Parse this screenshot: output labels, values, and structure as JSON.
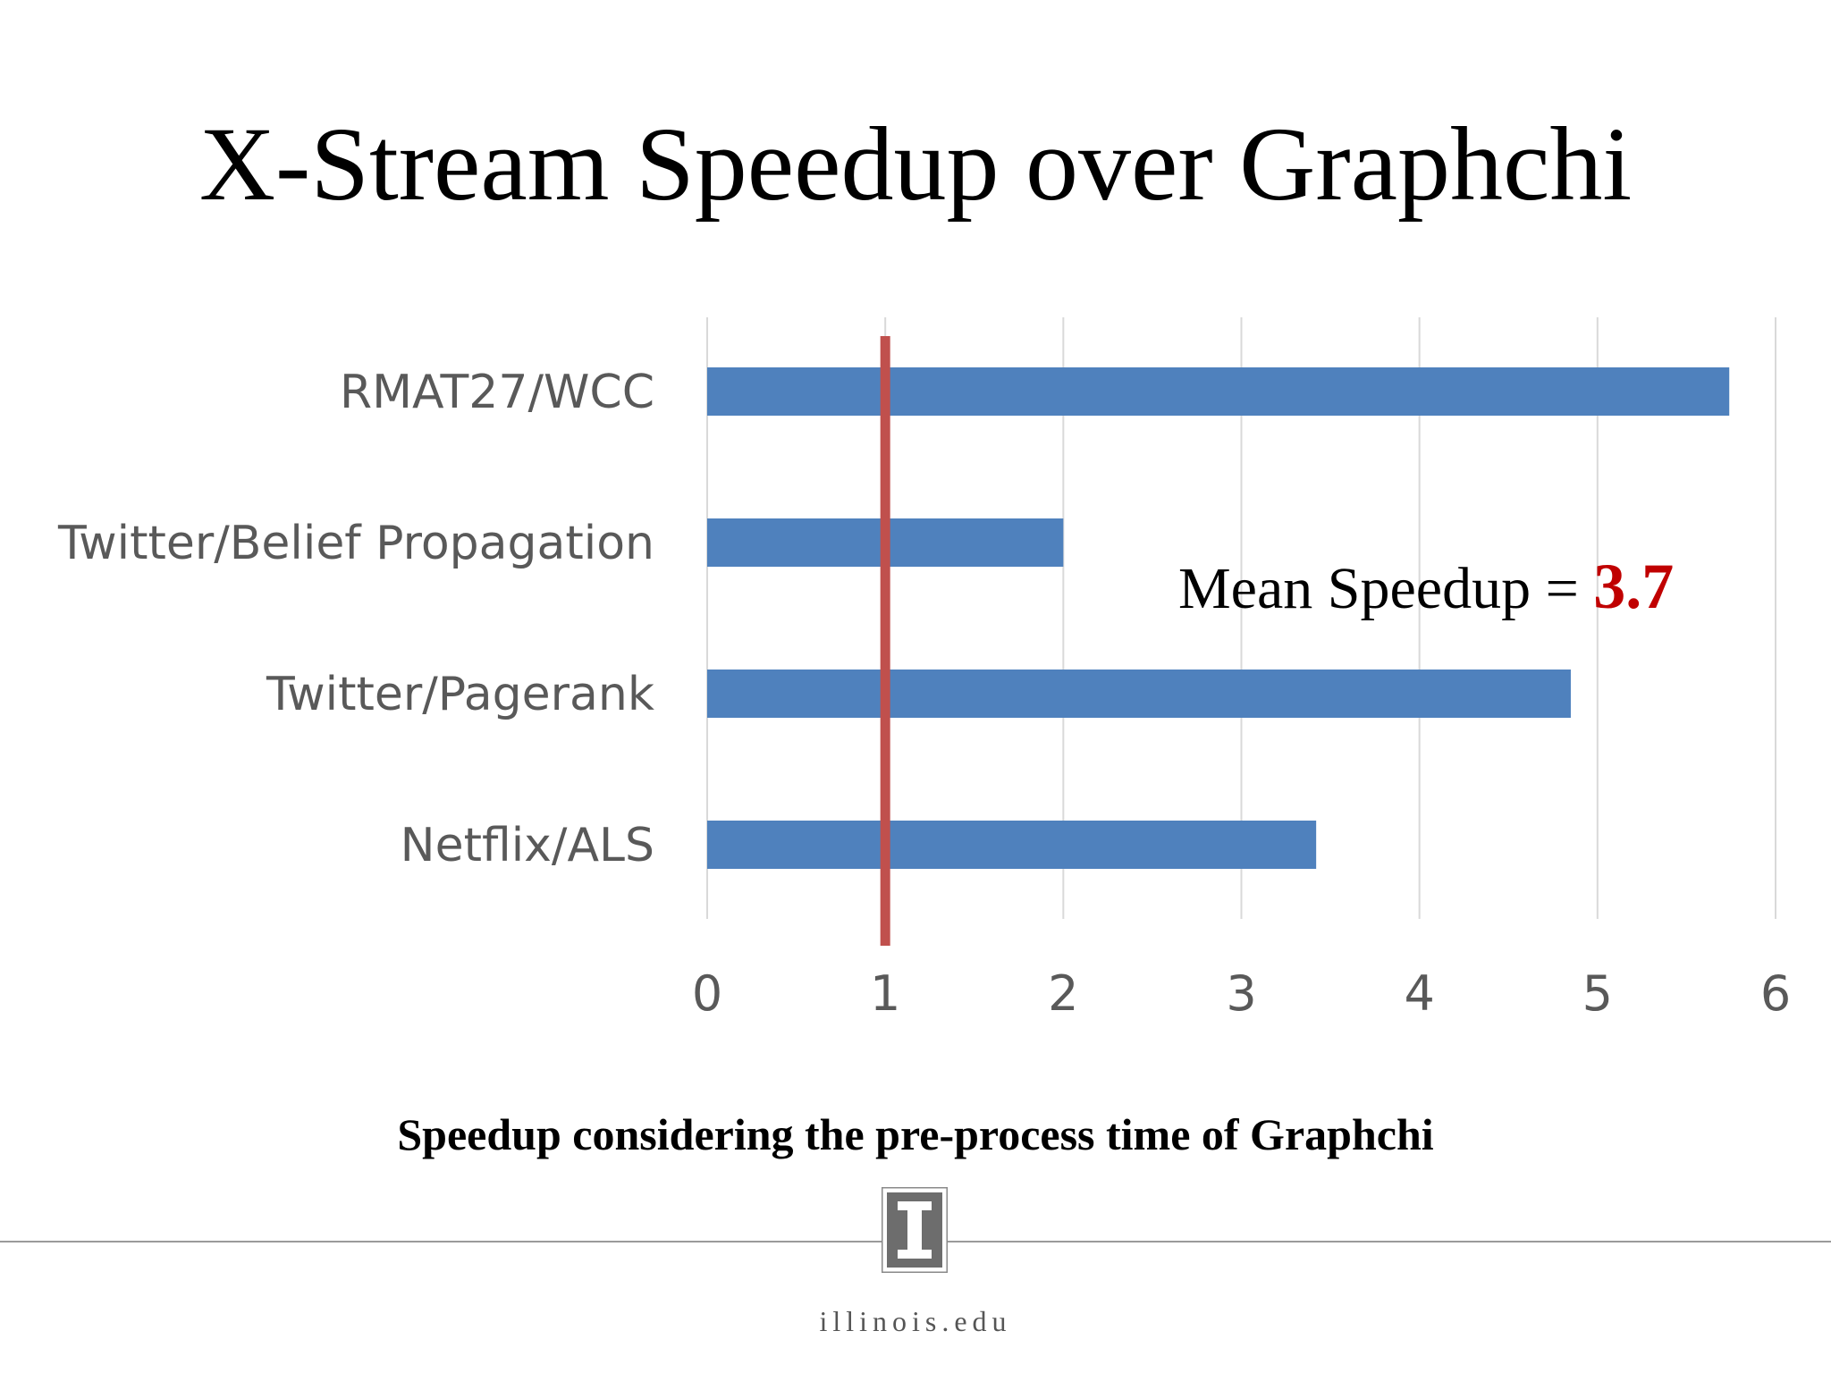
{
  "slide": {
    "title": "X-Stream Speedup over Graphchi",
    "caption": "Speedup considering the pre-process time of Graphchi",
    "annotation_text": "Mean Speedup = ",
    "annotation_value": "3.7",
    "footer_site": "illinois.edu"
  },
  "colors": {
    "bar": "#4f81bd",
    "reference_line": "#c0504d",
    "annotation_value": "#c00000",
    "gridline": "#d9d9d9",
    "label": "#595959"
  },
  "chart_data": {
    "type": "bar",
    "orientation": "horizontal",
    "categories": [
      "RMAT27/WCC",
      "Twitter/Belief Propagation",
      "Twitter/Pagerank",
      "Netflix/ALS"
    ],
    "values": [
      5.74,
      2.0,
      4.85,
      3.42
    ],
    "xlim": [
      0,
      6
    ],
    "xticks": [
      0,
      1,
      2,
      3,
      4,
      5,
      6
    ],
    "reference_line": 1,
    "grid": true,
    "legend": "none",
    "title": "",
    "xlabel": "",
    "ylabel": ""
  }
}
